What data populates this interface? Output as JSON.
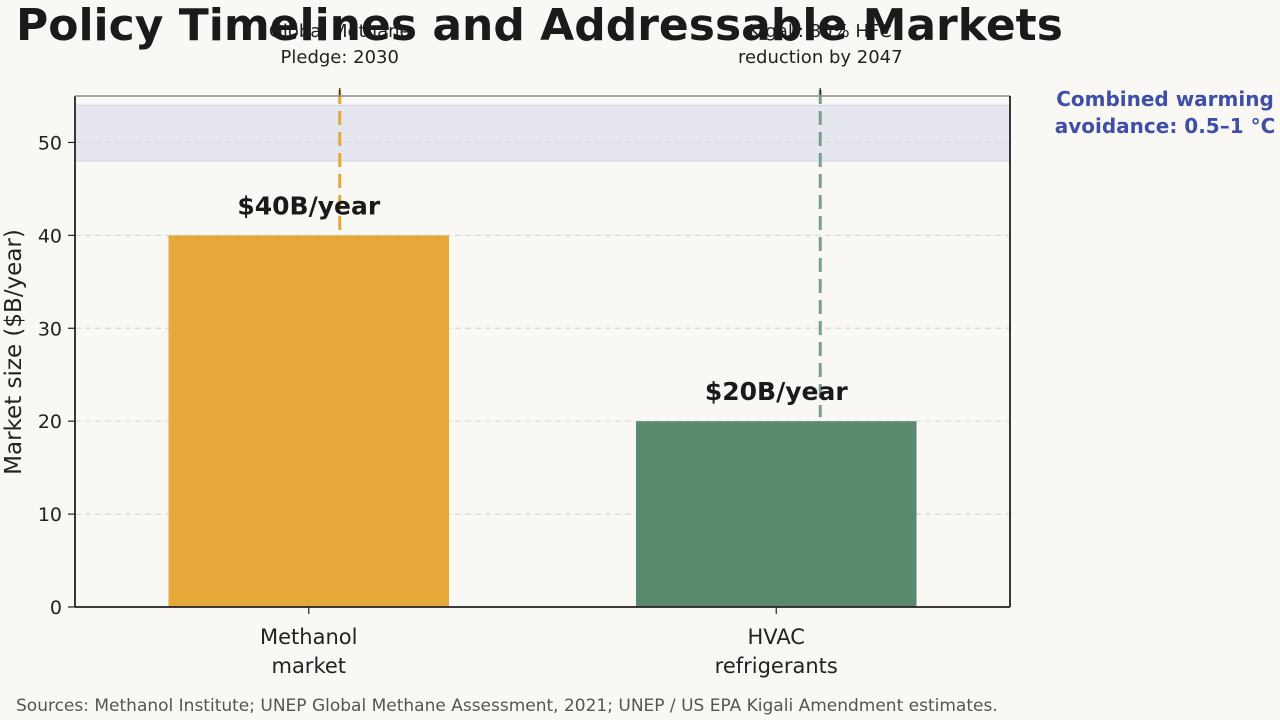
{
  "chart_data": {
    "type": "bar",
    "title": "Policy Timelines and Addressable Markets",
    "ylabel": "Market size ($B/year)",
    "xlabel": "",
    "categories": [
      [
        "Methanol",
        "market"
      ],
      [
        "HVAC",
        "refrigerants"
      ]
    ],
    "values": [
      40,
      20
    ],
    "value_labels": [
      "$40B/year",
      "$20B/year"
    ],
    "colors": [
      "#e6a838",
      "#5a8a6e"
    ],
    "ylim": [
      0,
      55
    ],
    "yticks": [
      0,
      10,
      20,
      30,
      40,
      50
    ],
    "grid": true,
    "policy_markers": [
      {
        "category_index": 0,
        "label": [
          "Global Methane",
          "Pledge: 2030"
        ],
        "color": "#e6a838"
      },
      {
        "category_index": 1,
        "label": [
          "Kigali: 80% HFC",
          "reduction by 2047"
        ],
        "color": "#7aa08a"
      }
    ],
    "band": {
      "y_range": [
        48,
        54
      ],
      "color": "#e6e6f0",
      "label": [
        "Combined warming",
        "avoidance: 0.5–1 °C"
      ],
      "label_color": "#3f4fa8"
    },
    "source": "Sources: Methanol Institute; UNEP Global Methane Assessment, 2021; UNEP / US EPA Kigali Amendment estimates."
  }
}
